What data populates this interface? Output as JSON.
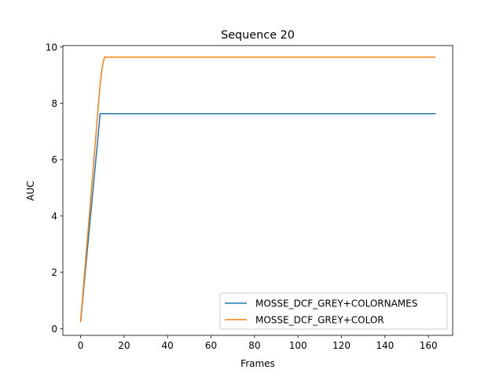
{
  "chart_data": {
    "type": "line",
    "title": "Sequence 20",
    "xlabel": "Frames",
    "ylabel": "AUC",
    "xlim": [
      -8.15,
      171.15
    ],
    "ylim": [
      -0.24,
      10.05
    ],
    "xticks": [
      0,
      20,
      40,
      60,
      80,
      100,
      120,
      140,
      160
    ],
    "yticks": [
      0,
      2,
      4,
      6,
      8,
      10
    ],
    "grid": false,
    "legend_position": "lower right",
    "series": [
      {
        "name": "MOSSE_DCF_GREY+COLORNAMES",
        "color": "#1f77b4",
        "x": [
          0,
          9,
          163
        ],
        "y": [
          0.25,
          7.63,
          7.63
        ]
      },
      {
        "name": "MOSSE_DCF_GREY+COLOR",
        "color": "#ff7f0e",
        "x": [
          0,
          9,
          10,
          11,
          163
        ],
        "y": [
          0.25,
          8.7,
          9.3,
          9.64,
          9.64
        ]
      }
    ]
  }
}
